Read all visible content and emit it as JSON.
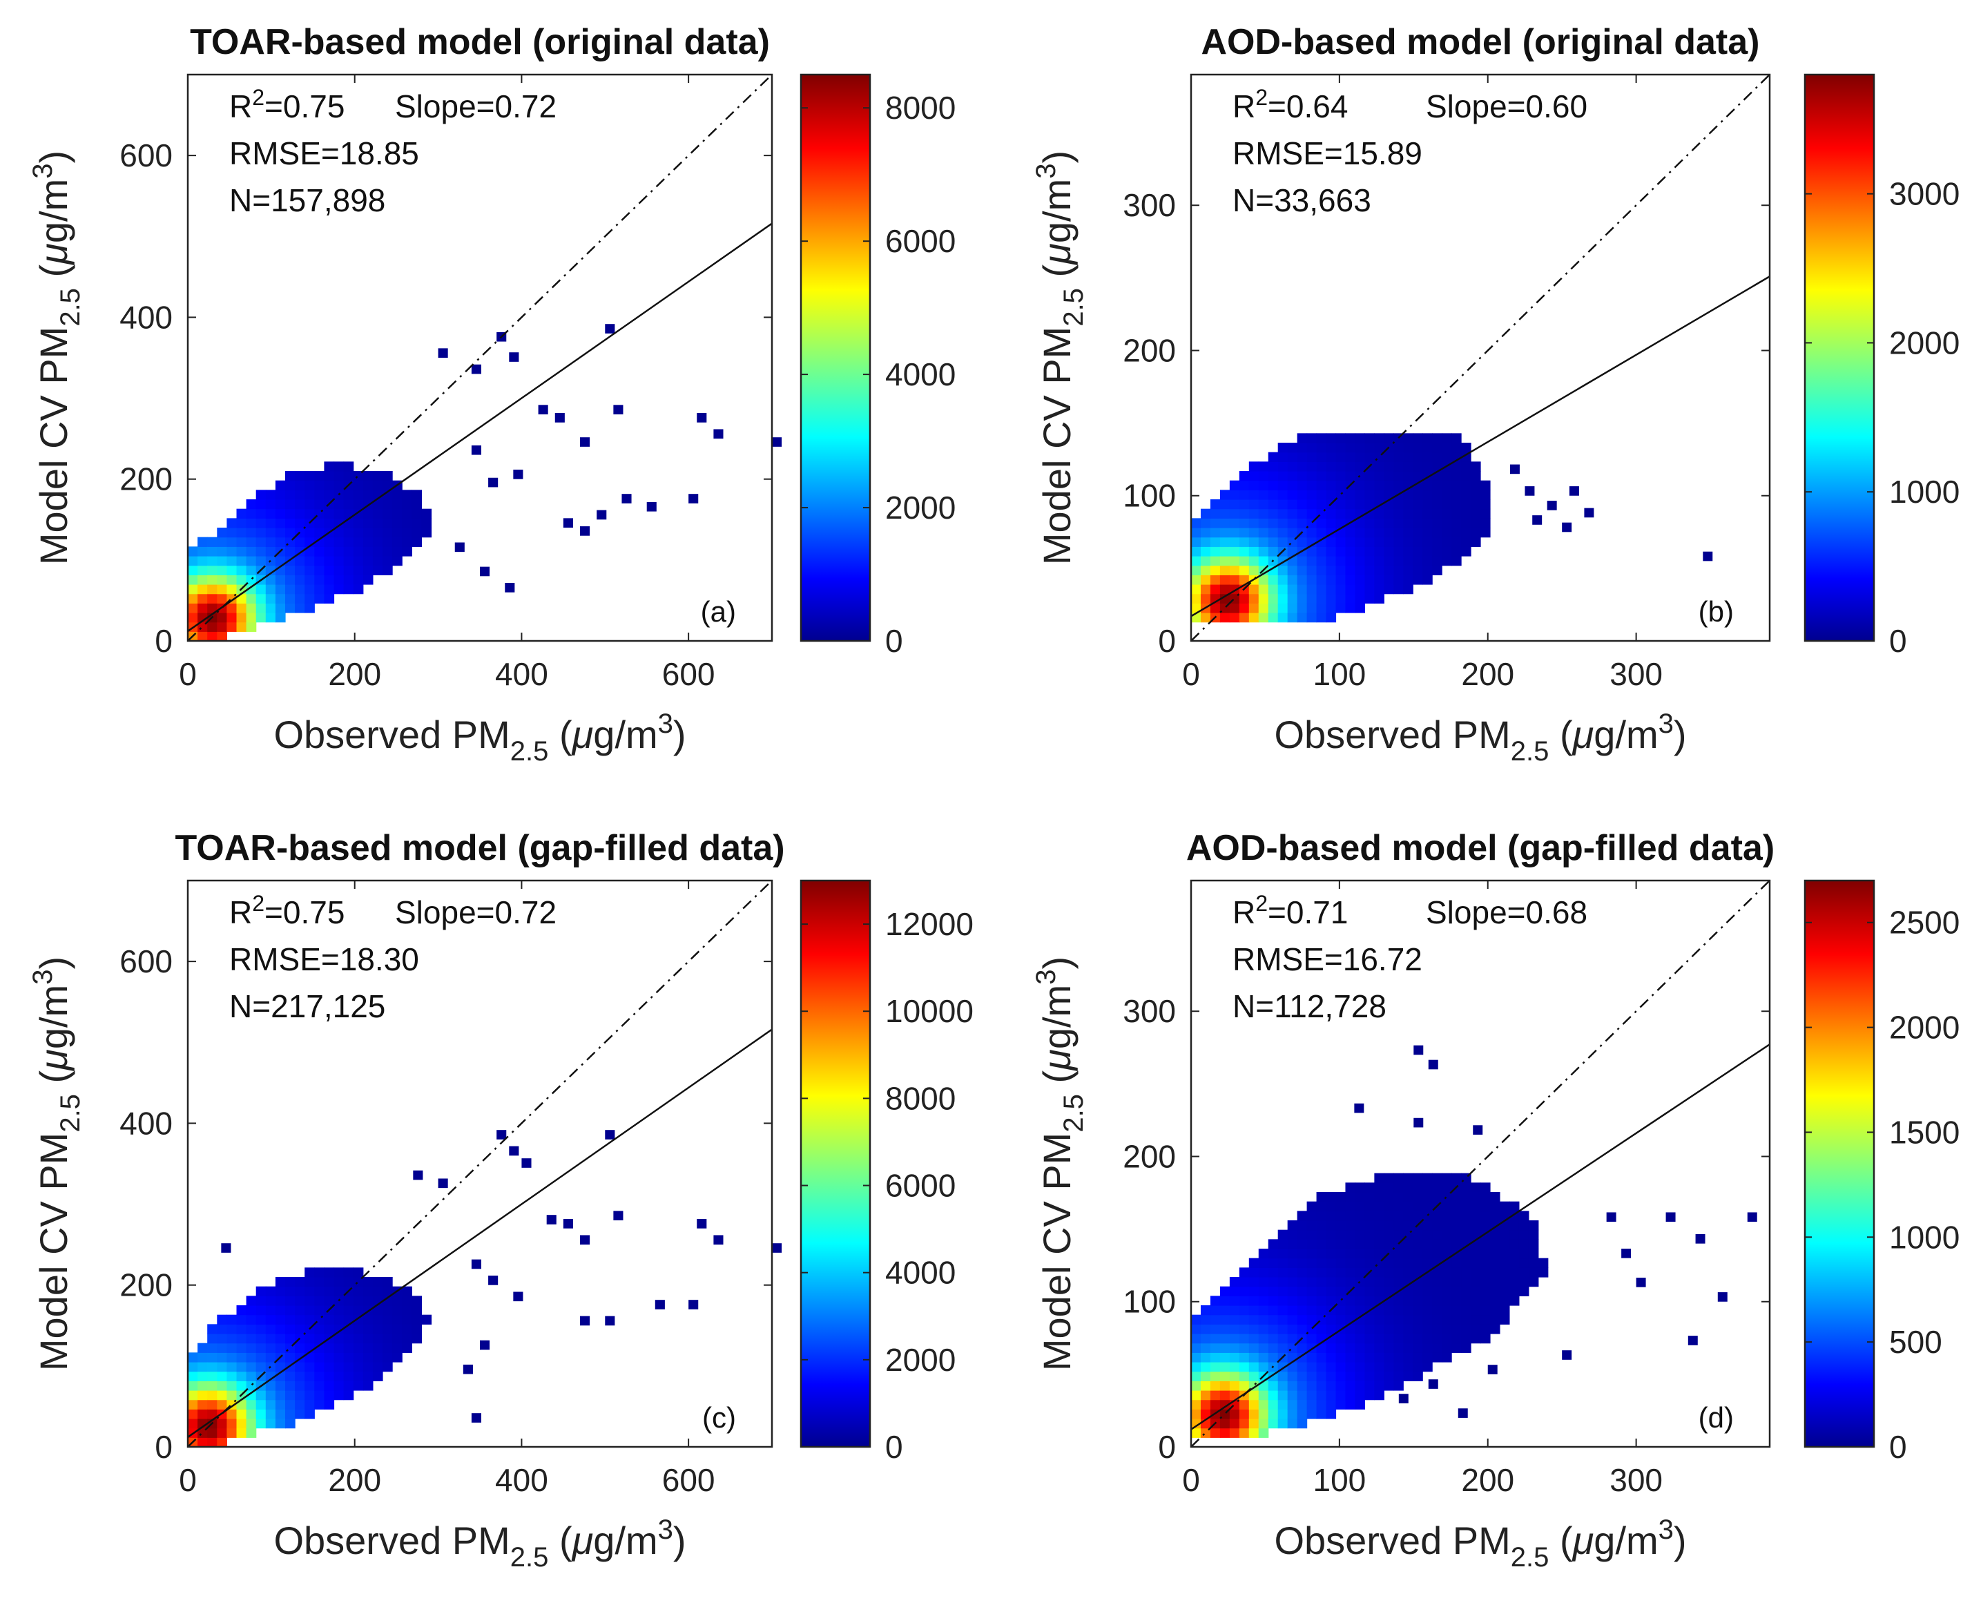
{
  "chart_data": [
    {
      "id": "a",
      "type": "heatmap",
      "title": "TOAR-based model (original data)",
      "xlabel": {
        "main": "Observed PM",
        "sub": "2.5",
        "unit_pre": " (",
        "mu": "μ",
        "unit_mid": "g/m",
        "sup": "3",
        "unit_post": ")"
      },
      "ylabel": {
        "main": "Model CV PM",
        "sub": "2.5",
        "unit_pre": " (",
        "mu": "μ",
        "unit_mid": "g/m",
        "sup": "3",
        "unit_post": ")"
      },
      "xlim": [
        0,
        700
      ],
      "ylim": [
        0,
        700
      ],
      "xticks": [
        0,
        200,
        400,
        600
      ],
      "yticks": [
        0,
        200,
        400,
        600
      ],
      "xtick_labels": [
        "0",
        "200",
        "400",
        "600"
      ],
      "ytick_labels": [
        "0",
        "200",
        "400",
        "600"
      ],
      "stats": {
        "r2": "R2=0.75",
        "r2_pre": "R",
        "r2_sup": "2",
        "r2_val": "=0.75",
        "slope": "Slope=0.72",
        "rmse": "RMSE=18.85",
        "n": "N=157,898"
      },
      "fit_line": {
        "slope": 0.72,
        "intercept": 12
      },
      "one_to_one": true,
      "panel_label": "(a)",
      "colorbar": {
        "max": 8500,
        "ticks": [
          0,
          2000,
          4000,
          6000,
          8000
        ],
        "tick_labels": [
          "0",
          "2000",
          "4000",
          "6000",
          "8000"
        ]
      },
      "density": {
        "cx": 30,
        "cy": 28,
        "peak": 8500
      },
      "cloud_polygon": [
        [
          0,
          5
        ],
        [
          40,
          5
        ],
        [
          120,
          30
        ],
        [
          200,
          60
        ],
        [
          260,
          100
        ],
        [
          300,
          140
        ],
        [
          280,
          180
        ],
        [
          230,
          210
        ],
        [
          170,
          220
        ],
        [
          110,
          200
        ],
        [
          50,
          150
        ],
        [
          0,
          110
        ]
      ],
      "outliers": [
        [
          300,
          350
        ],
        [
          340,
          330
        ],
        [
          370,
          370
        ],
        [
          385,
          345
        ],
        [
          420,
          280
        ],
        [
          440,
          270
        ],
        [
          470,
          240
        ],
        [
          500,
          380
        ],
        [
          510,
          280
        ],
        [
          610,
          270
        ],
        [
          630,
          250
        ],
        [
          700,
          240
        ],
        [
          340,
          230
        ],
        [
          360,
          190
        ],
        [
          390,
          200
        ],
        [
          450,
          140
        ],
        [
          470,
          130
        ],
        [
          490,
          150
        ],
        [
          520,
          170
        ],
        [
          550,
          160
        ],
        [
          600,
          170
        ],
        [
          320,
          110
        ],
        [
          350,
          80
        ],
        [
          380,
          60
        ]
      ]
    },
    {
      "id": "b",
      "type": "heatmap",
      "title": "AOD-based model (original data)",
      "xlabel": {
        "main": "Observed PM",
        "sub": "2.5",
        "unit_pre": " (",
        "mu": "μ",
        "unit_mid": "g/m",
        "sup": "3",
        "unit_post": ")"
      },
      "ylabel": {
        "main": "Model CV PM",
        "sub": "2.5",
        "unit_pre": " (",
        "mu": "μ",
        "unit_mid": "g/m",
        "sup": "3",
        "unit_post": ")"
      },
      "xlim": [
        0,
        390
      ],
      "ylim": [
        0,
        390
      ],
      "xticks": [
        0,
        100,
        200,
        300
      ],
      "yticks": [
        0,
        100,
        200,
        300
      ],
      "xtick_labels": [
        "0",
        "100",
        "200",
        "300"
      ],
      "ytick_labels": [
        "0",
        "100",
        "200",
        "300"
      ],
      "stats": {
        "r2": "R2=0.64",
        "r2_pre": "R",
        "r2_sup": "2",
        "r2_val": "=0.64",
        "slope": "Slope=0.60",
        "rmse": "RMSE=15.89",
        "n": "N=33,663"
      },
      "fit_line": {
        "slope": 0.6,
        "intercept": 17
      },
      "one_to_one": true,
      "panel_label": "(b)",
      "colorbar": {
        "max": 3800,
        "ticks": [
          0,
          1000,
          2000,
          3000
        ],
        "tick_labels": [
          "0",
          "1000",
          "2000",
          "3000"
        ]
      },
      "density": {
        "cx": 25,
        "cy": 28,
        "peak": 3800
      },
      "cloud_polygon": [
        [
          0,
          10
        ],
        [
          80,
          10
        ],
        [
          160,
          40
        ],
        [
          200,
          70
        ],
        [
          200,
          110
        ],
        [
          180,
          145
        ],
        [
          80,
          145
        ],
        [
          40,
          120
        ],
        [
          0,
          80
        ]
      ],
      "outliers": [
        [
          215,
          115
        ],
        [
          225,
          100
        ],
        [
          240,
          90
        ],
        [
          255,
          100
        ],
        [
          265,
          85
        ],
        [
          250,
          75
        ],
        [
          230,
          80
        ],
        [
          345,
          55
        ]
      ]
    },
    {
      "id": "c",
      "type": "heatmap",
      "title": "TOAR-based model (gap-filled data)",
      "xlabel": {
        "main": "Observed PM",
        "sub": "2.5",
        "unit_pre": " (",
        "mu": "μ",
        "unit_mid": "g/m",
        "sup": "3",
        "unit_post": ")"
      },
      "ylabel": {
        "main": "Model CV PM",
        "sub": "2.5",
        "unit_pre": " (",
        "mu": "μ",
        "unit_mid": "g/m",
        "sup": "3",
        "unit_post": ")"
      },
      "xlim": [
        0,
        700
      ],
      "ylim": [
        0,
        700
      ],
      "xticks": [
        0,
        200,
        400,
        600
      ],
      "yticks": [
        0,
        200,
        400,
        600
      ],
      "xtick_labels": [
        "0",
        "200",
        "400",
        "600"
      ],
      "ytick_labels": [
        "0",
        "200",
        "400",
        "600"
      ],
      "stats": {
        "r2": "R2=0.75",
        "r2_pre": "R",
        "r2_sup": "2",
        "r2_val": "=0.75",
        "slope": "Slope=0.72",
        "rmse": "RMSE=18.30",
        "n": "N=217,125"
      },
      "fit_line": {
        "slope": 0.72,
        "intercept": 12
      },
      "one_to_one": true,
      "panel_label": "(c)",
      "colorbar": {
        "max": 13000,
        "ticks": [
          0,
          2000,
          4000,
          6000,
          8000,
          10000,
          12000
        ],
        "tick_labels": [
          "0",
          "2000",
          "4000",
          "6000",
          "8000",
          "10000",
          "12000"
        ]
      },
      "density": {
        "cx": 25,
        "cy": 25,
        "peak": 13000
      },
      "cloud_polygon": [
        [
          0,
          5
        ],
        [
          40,
          5
        ],
        [
          130,
          30
        ],
        [
          210,
          70
        ],
        [
          260,
          110
        ],
        [
          290,
          160
        ],
        [
          270,
          190
        ],
        [
          220,
          215
        ],
        [
          150,
          220
        ],
        [
          90,
          200
        ],
        [
          30,
          150
        ],
        [
          0,
          110
        ]
      ],
      "outliers": [
        [
          40,
          240
        ],
        [
          270,
          330
        ],
        [
          300,
          320
        ],
        [
          370,
          380
        ],
        [
          385,
          360
        ],
        [
          400,
          345
        ],
        [
          430,
          275
        ],
        [
          450,
          270
        ],
        [
          470,
          250
        ],
        [
          500,
          380
        ],
        [
          510,
          280
        ],
        [
          610,
          270
        ],
        [
          630,
          250
        ],
        [
          700,
          240
        ],
        [
          340,
          220
        ],
        [
          360,
          200
        ],
        [
          390,
          180
        ],
        [
          470,
          150
        ],
        [
          500,
          150
        ],
        [
          560,
          170
        ],
        [
          600,
          170
        ],
        [
          340,
          30
        ],
        [
          330,
          90
        ],
        [
          350,
          120
        ]
      ]
    },
    {
      "id": "d",
      "type": "heatmap",
      "title": "AOD-based model (gap-filled data)",
      "xlabel": {
        "main": "Observed PM",
        "sub": "2.5",
        "unit_pre": " (",
        "mu": "μ",
        "unit_mid": "g/m",
        "sup": "3",
        "unit_post": ")"
      },
      "ylabel": {
        "main": "Model CV PM",
        "sub": "2.5",
        "unit_pre": " (",
        "mu": "μ",
        "unit_mid": "g/m",
        "sup": "3",
        "unit_post": ")"
      },
      "xlim": [
        0,
        390
      ],
      "ylim": [
        0,
        390
      ],
      "xticks": [
        0,
        100,
        200,
        300
      ],
      "yticks": [
        0,
        100,
        200,
        300
      ],
      "xtick_labels": [
        "0",
        "100",
        "200",
        "300"
      ],
      "ytick_labels": [
        "0",
        "100",
        "200",
        "300"
      ],
      "stats": {
        "r2": "R2=0.71",
        "r2_pre": "R",
        "r2_sup": "2",
        "r2_val": "=0.71",
        "slope": "Slope=0.68",
        "rmse": "RMSE=16.72",
        "n": "N=112,728"
      },
      "fit_line": {
        "slope": 0.68,
        "intercept": 12
      },
      "one_to_one": true,
      "panel_label": "(d)",
      "colorbar": {
        "max": 2700,
        "ticks": [
          0,
          500,
          1000,
          1500,
          2000,
          2500
        ],
        "tick_labels": [
          "0",
          "500",
          "1000",
          "1500",
          "2000",
          "2500"
        ]
      },
      "density": {
        "cx": 22,
        "cy": 22,
        "peak": 2700
      },
      "cloud_polygon": [
        [
          0,
          5
        ],
        [
          40,
          5
        ],
        [
          120,
          30
        ],
        [
          200,
          75
        ],
        [
          240,
          120
        ],
        [
          230,
          160
        ],
        [
          190,
          185
        ],
        [
          140,
          190
        ],
        [
          80,
          170
        ],
        [
          30,
          120
        ],
        [
          0,
          90
        ]
      ],
      "outliers": [
        [
          150,
          270
        ],
        [
          160,
          260
        ],
        [
          110,
          230
        ],
        [
          150,
          220
        ],
        [
          190,
          215
        ],
        [
          280,
          155
        ],
        [
          320,
          155
        ],
        [
          340,
          140
        ],
        [
          375,
          155
        ],
        [
          290,
          130
        ],
        [
          300,
          110
        ],
        [
          355,
          100
        ],
        [
          335,
          70
        ],
        [
          160,
          40
        ],
        [
          200,
          50
        ],
        [
          250,
          60
        ],
        [
          140,
          30
        ],
        [
          180,
          20
        ]
      ]
    }
  ]
}
